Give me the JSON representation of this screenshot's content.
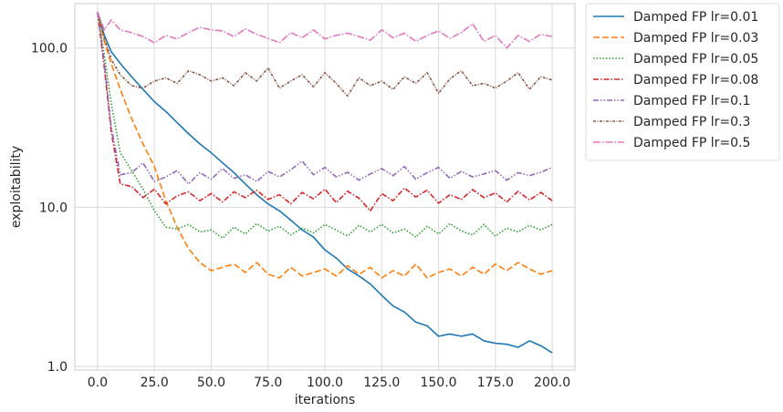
{
  "chart_data": {
    "type": "line",
    "title": "",
    "xlabel": "iterations",
    "ylabel": "exploitability",
    "xlim": [
      -10,
      210
    ],
    "ylim": [
      0.95,
      190
    ],
    "yscale": "log",
    "grid": true,
    "legend_position": "outside-top-right",
    "x_ticks": [
      0,
      25,
      50,
      75,
      100,
      125,
      150,
      175,
      200
    ],
    "x_tick_labels": [
      "0.0",
      "25.0",
      "50.0",
      "75.0",
      "100.0",
      "125.0",
      "150.0",
      "175.0",
      "200.0"
    ],
    "y_ticks": [
      1,
      10,
      100
    ],
    "y_tick_labels": [
      "1.0",
      "10.0",
      "100.0"
    ],
    "series": [
      {
        "name": "Damped FP lr=0.01",
        "color": "#1f77b4",
        "dash": "solid",
        "x": [
          0,
          3,
          6,
          10,
          15,
          20,
          25,
          30,
          35,
          40,
          45,
          50,
          55,
          60,
          65,
          70,
          75,
          80,
          85,
          90,
          95,
          100,
          105,
          110,
          115,
          120,
          125,
          130,
          135,
          140,
          145,
          150,
          155,
          160,
          165,
          170,
          175,
          180,
          185,
          190,
          195,
          200
        ],
        "y": [
          168,
          120,
          95,
          80,
          66,
          55,
          46,
          40,
          34,
          29,
          25,
          22,
          19,
          16.5,
          14,
          12,
          10.5,
          9.5,
          8.3,
          7.2,
          6.5,
          5.4,
          4.8,
          4.1,
          3.7,
          3.3,
          2.8,
          2.4,
          2.2,
          1.9,
          1.8,
          1.55,
          1.6,
          1.55,
          1.6,
          1.45,
          1.4,
          1.38,
          1.32,
          1.45,
          1.35,
          1.22
        ]
      },
      {
        "name": "Damped FP lr=0.03",
        "color": "#ff7f0e",
        "dash": "dashed",
        "x": [
          0,
          3,
          6,
          10,
          15,
          20,
          25,
          30,
          35,
          40,
          45,
          50,
          55,
          60,
          65,
          70,
          75,
          80,
          85,
          90,
          95,
          100,
          105,
          110,
          115,
          120,
          125,
          130,
          135,
          140,
          145,
          150,
          155,
          160,
          165,
          170,
          175,
          180,
          185,
          190,
          195,
          200
        ],
        "y": [
          168,
          110,
          80,
          55,
          36,
          25,
          18,
          11,
          7.5,
          5.5,
          4.5,
          4.0,
          4.2,
          4.4,
          3.9,
          4.5,
          3.8,
          3.6,
          4.2,
          3.7,
          3.9,
          4.1,
          3.7,
          4.3,
          3.8,
          4.2,
          3.6,
          4.0,
          3.7,
          4.4,
          3.6,
          3.9,
          4.1,
          3.7,
          4.2,
          3.8,
          4.4,
          4.0,
          4.5,
          4.1,
          3.8,
          4.0
        ]
      },
      {
        "name": "Damped FP lr=0.05",
        "color": "#2ca02c",
        "dash": "dotted",
        "x": [
          0,
          3,
          6,
          10,
          15,
          20,
          25,
          30,
          35,
          40,
          45,
          50,
          55,
          60,
          65,
          70,
          75,
          80,
          85,
          90,
          95,
          100,
          105,
          110,
          115,
          120,
          125,
          130,
          135,
          140,
          145,
          150,
          155,
          160,
          165,
          170,
          175,
          180,
          185,
          190,
          195,
          200
        ],
        "y": [
          168,
          90,
          45,
          22,
          17,
          13,
          9.5,
          7.5,
          7.3,
          7.8,
          7.0,
          7.2,
          6.4,
          7.5,
          6.8,
          7.9,
          7.1,
          7.6,
          6.7,
          7.4,
          6.9,
          7.8,
          7.2,
          6.6,
          7.7,
          7.0,
          7.8,
          6.9,
          7.3,
          6.5,
          7.6,
          6.8,
          7.9,
          7.1,
          6.7,
          7.8,
          6.6,
          7.4,
          7.0,
          7.7,
          7.2,
          7.8
        ]
      },
      {
        "name": "Damped FP lr=0.08",
        "color": "#d62728",
        "dash": "dashdot",
        "x": [
          0,
          3,
          6,
          10,
          15,
          20,
          25,
          30,
          35,
          40,
          45,
          50,
          55,
          60,
          65,
          70,
          75,
          80,
          85,
          90,
          95,
          100,
          105,
          110,
          115,
          120,
          125,
          130,
          135,
          140,
          145,
          150,
          155,
          160,
          165,
          170,
          175,
          180,
          185,
          190,
          195,
          200
        ],
        "y": [
          168,
          75,
          30,
          14,
          13.5,
          11.5,
          13,
          10.5,
          11.8,
          12.5,
          11,
          12.2,
          10.8,
          12.5,
          11.5,
          12.8,
          11.2,
          12.0,
          10.5,
          12.4,
          11.3,
          13.0,
          10.7,
          12.6,
          11.4,
          9.5,
          12.2,
          11.0,
          13.2,
          11.6,
          12.8,
          10.6,
          12.0,
          11.2,
          12.9,
          11.5,
          12.3,
          10.8,
          12.6,
          11.1,
          12.4,
          11.0
        ]
      },
      {
        "name": "Damped FP lr=0.1",
        "color": "#9467bd",
        "dash": "dashdotdot",
        "x": [
          0,
          3,
          6,
          10,
          15,
          20,
          25,
          30,
          35,
          40,
          45,
          50,
          55,
          60,
          65,
          70,
          75,
          80,
          85,
          90,
          95,
          100,
          105,
          110,
          115,
          120,
          125,
          130,
          135,
          140,
          145,
          150,
          155,
          160,
          165,
          170,
          175,
          180,
          185,
          190,
          195,
          200
        ],
        "y": [
          168,
          80,
          32,
          16,
          16.5,
          19,
          14.5,
          15.5,
          17.0,
          14.0,
          16.5,
          15.0,
          17.5,
          15.2,
          16.0,
          14.5,
          16.8,
          15.5,
          17.2,
          19.5,
          16.0,
          17.8,
          15.5,
          16.6,
          14.8,
          16.2,
          17.5,
          15.8,
          18.0,
          15.0,
          16.5,
          17.8,
          15.2,
          16.8,
          15.5,
          16.2,
          17.0,
          14.8,
          16.5,
          15.8,
          16.6,
          17.8
        ]
      },
      {
        "name": "Damped FP lr=0.3",
        "color": "#8c564b",
        "dash": "densedashdot",
        "x": [
          0,
          3,
          6,
          10,
          15,
          20,
          25,
          30,
          35,
          40,
          45,
          50,
          55,
          60,
          65,
          70,
          75,
          80,
          85,
          90,
          95,
          100,
          105,
          110,
          115,
          120,
          125,
          130,
          135,
          140,
          145,
          150,
          155,
          160,
          165,
          170,
          175,
          180,
          185,
          190,
          195,
          200
        ],
        "y": [
          168,
          115,
          85,
          68,
          58,
          56,
          62,
          65,
          60,
          72,
          68,
          62,
          65,
          58,
          70,
          62,
          75,
          56,
          62,
          68,
          57,
          70,
          60,
          50,
          65,
          58,
          62,
          55,
          66,
          60,
          70,
          52,
          64,
          72,
          58,
          60,
          56,
          62,
          70,
          55,
          66,
          63
        ]
      },
      {
        "name": "Damped FP lr=0.5",
        "color": "#e377c2",
        "dash": "dashdotlong",
        "x": [
          0,
          3,
          6,
          10,
          15,
          20,
          25,
          30,
          35,
          40,
          45,
          50,
          55,
          60,
          65,
          70,
          75,
          80,
          85,
          90,
          95,
          100,
          105,
          110,
          115,
          120,
          125,
          130,
          135,
          140,
          145,
          150,
          155,
          160,
          165,
          170,
          175,
          180,
          185,
          190,
          195,
          200
        ],
        "y": [
          168,
          130,
          150,
          130,
          125,
          118,
          108,
          120,
          114,
          125,
          135,
          130,
          128,
          118,
          132,
          122,
          115,
          108,
          125,
          116,
          130,
          114,
          120,
          124,
          118,
          112,
          130,
          116,
          124,
          110,
          120,
          128,
          115,
          125,
          142,
          110,
          120,
          100,
          120,
          110,
          122,
          118
        ]
      }
    ]
  }
}
